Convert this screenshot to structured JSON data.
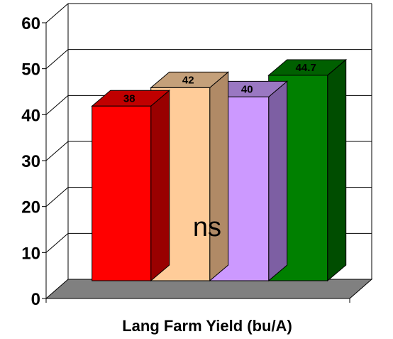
{
  "chart_data": {
    "type": "bar",
    "categories": [
      "",
      "",
      "",
      ""
    ],
    "values": [
      38,
      42,
      40,
      44.7
    ],
    "value_labels": [
      "38",
      "42",
      "40",
      "44.7"
    ],
    "colors": [
      {
        "front": "#ff0000",
        "top": "#c00000",
        "side": "#990000"
      },
      {
        "front": "#ffcc99",
        "top": "#c4a07a",
        "side": "#b08a66"
      },
      {
        "front": "#cc99ff",
        "top": "#9a78c2",
        "side": "#7d5fa3"
      },
      {
        "front": "#008000",
        "top": "#006000",
        "side": "#004d00"
      }
    ],
    "title": "",
    "xlabel": "Lang Farm Yield (bu/A)",
    "ylabel": "",
    "ylim": [
      0,
      60
    ],
    "yticks": [
      0,
      10,
      20,
      30,
      40,
      50,
      60
    ],
    "annotation": "ns",
    "grid": true,
    "style": "3d"
  }
}
